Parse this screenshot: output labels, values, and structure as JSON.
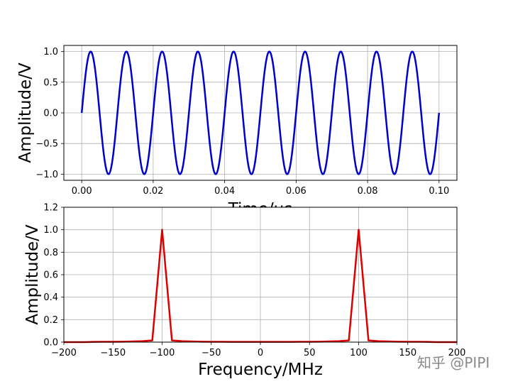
{
  "watermark": "知乎 @PIPI",
  "chart_data": [
    {
      "type": "line",
      "xlabel": "Time/us",
      "ylabel": "Amplitude/V",
      "xlim": [
        -0.005,
        0.105
      ],
      "ylim": [
        -1.1,
        1.1
      ],
      "xticks": [
        0.0,
        0.02,
        0.04,
        0.06,
        0.08,
        0.1
      ],
      "xtick_labels": [
        "0.00",
        "0.02",
        "0.04",
        "0.06",
        "0.08",
        "0.10"
      ],
      "yticks": [
        -1.0,
        -0.5,
        0.0,
        0.5,
        1.0
      ],
      "ytick_labels": [
        "−1.0",
        "−0.5",
        "0.0",
        "0.5",
        "1.0"
      ],
      "grid": true,
      "series": [
        {
          "color": "#0000cc",
          "function": "sin",
          "amplitude": 1.0,
          "frequency_per_us": 100,
          "x_range": [
            0,
            0.1
          ]
        }
      ]
    },
    {
      "type": "line",
      "xlabel": "Frequency/MHz",
      "ylabel": "Amplitude/V",
      "xlim": [
        -200,
        200
      ],
      "ylim": [
        0,
        1.2
      ],
      "xticks": [
        -200,
        -150,
        -100,
        -50,
        0,
        50,
        100,
        150,
        200
      ],
      "xtick_labels": [
        "−200",
        "−150",
        "−100",
        "−50",
        "0",
        "50",
        "100",
        "150",
        "200"
      ],
      "yticks": [
        0.0,
        0.2,
        0.4,
        0.6,
        0.8,
        1.0,
        1.2
      ],
      "ytick_labels": [
        "0.0",
        "0.2",
        "0.4",
        "0.6",
        "0.8",
        "1.0",
        "1.2"
      ],
      "grid": true,
      "series": [
        {
          "color": "#dd0000",
          "x": [
            -200,
            -190,
            -180,
            -170,
            -160,
            -150,
            -140,
            -130,
            -120,
            -110,
            -100,
            -90,
            -80,
            -70,
            -60,
            -50,
            -40,
            -30,
            -20,
            -10,
            0,
            10,
            20,
            30,
            40,
            50,
            60,
            70,
            80,
            90,
            100,
            110,
            120,
            130,
            140,
            150,
            160,
            170,
            180,
            190,
            200
          ],
          "y": [
            0,
            0,
            0,
            0.002,
            0.003,
            0.003,
            0.004,
            0.006,
            0.009,
            0.015,
            1.0,
            0.015,
            0.009,
            0.006,
            0.004,
            0.003,
            0.003,
            0.002,
            0.002,
            0.002,
            0.002,
            0.002,
            0.002,
            0.002,
            0.003,
            0.003,
            0.004,
            0.006,
            0.009,
            0.015,
            1.0,
            0.015,
            0.009,
            0.006,
            0.004,
            0.003,
            0.003,
            0.002,
            0,
            0,
            0
          ]
        }
      ]
    }
  ]
}
